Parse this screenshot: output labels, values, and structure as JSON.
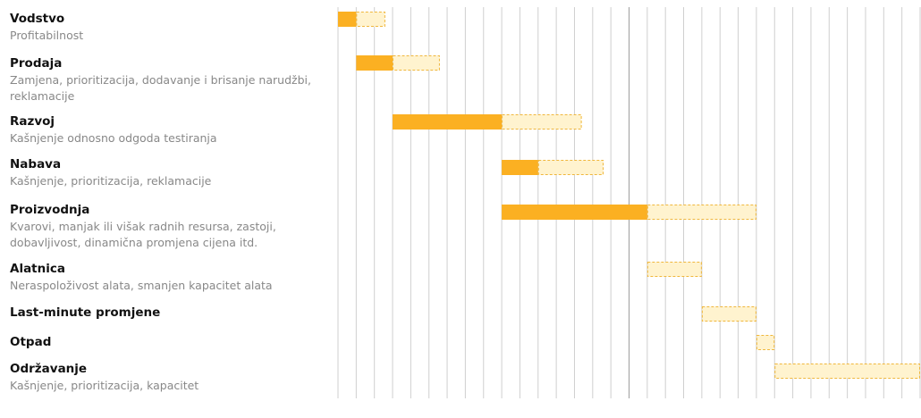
{
  "colors": {
    "actual": "#fbb022",
    "planned_fill": "#fff3cf",
    "planned_border": "#f0b73c",
    "grid": "#cfcfcf",
    "grid_major": "#9e9e9e",
    "title": "#111111",
    "desc": "#888888"
  },
  "chart_data": {
    "type": "gantt",
    "axis": {
      "min": 0,
      "max": 32,
      "major_at": 16
    },
    "rows": [
      {
        "title": "Vodstvo",
        "desc": "Profitabilnost",
        "actual": [
          0,
          1
        ],
        "planned": [
          1,
          2.6
        ]
      },
      {
        "title": "Prodaja",
        "desc": "Zamjena, prioritizacija, dodavanje i brisanje narudžbi, reklamacije",
        "actual": [
          1,
          3
        ],
        "planned": [
          3,
          5.6
        ]
      },
      {
        "title": "Razvoj",
        "desc": "Kašnjenje odnosno odgoda testiranja",
        "actual": [
          3,
          9
        ],
        "planned": [
          9,
          13.4
        ]
      },
      {
        "title": "Nabava",
        "desc": "Kašnjenje, prioritizacija, reklamacije",
        "actual": [
          9,
          11
        ],
        "planned": [
          11,
          14.6
        ]
      },
      {
        "title": "Proizvodnja",
        "desc": "Kvarovi, manjak ili višak radnih resursa, zastoji, dobavljivost, dinamična promjena cijena itd.",
        "actual": [
          9,
          17
        ],
        "planned": [
          17,
          23
        ]
      },
      {
        "title": "Alatnica",
        "desc": "Neraspoloživost alata, smanjen kapacitet alata",
        "actual": null,
        "planned": [
          17,
          20
        ]
      },
      {
        "title": "Last-minute promjene",
        "desc": "",
        "actual": null,
        "planned": [
          20,
          23
        ]
      },
      {
        "title": "Otpad",
        "desc": "",
        "actual": null,
        "planned": [
          23,
          24
        ]
      },
      {
        "title": "Održavanje",
        "desc": "Kašnjenje, prioritizacija, kapacitet",
        "actual": null,
        "planned": [
          24,
          32
        ]
      }
    ]
  }
}
